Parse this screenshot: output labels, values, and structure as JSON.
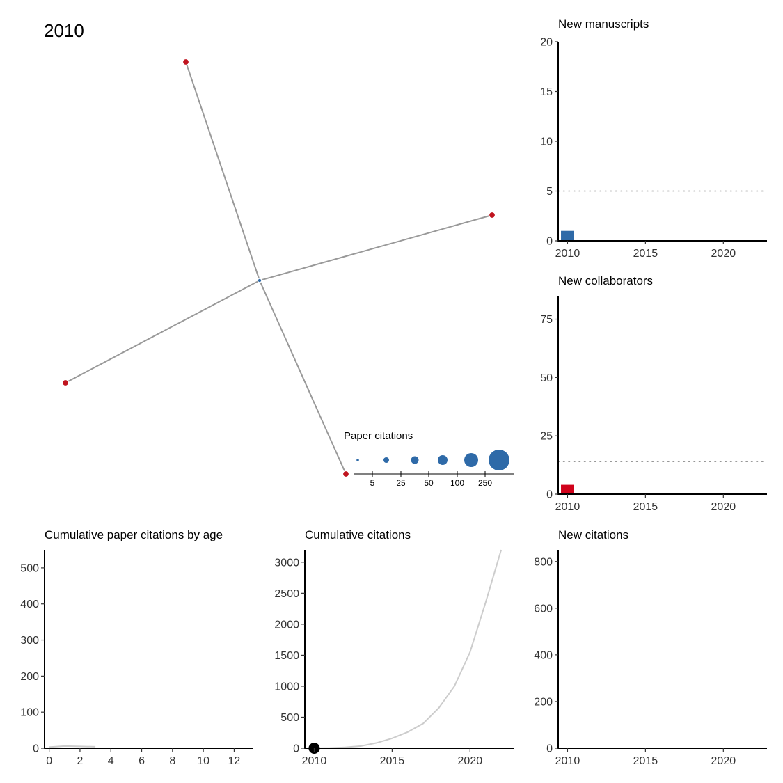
{
  "year_label": "2010",
  "colors": {
    "author_node": "#C0141F",
    "paper_node": "#2E6AA8",
    "edge": "#999999",
    "bar_red": "#D0021B",
    "bar_blue": "#2E6AA8",
    "grey_line": "#CCCCCC",
    "dotted": "#888888"
  },
  "legend": {
    "title": "Paper citations",
    "ticks": [
      "5",
      "25",
      "50",
      "100",
      "250"
    ]
  },
  "chart_data": [
    {
      "id": "network",
      "type": "network",
      "nodes": [
        {
          "id": "paper",
          "kind": "paper"
        },
        {
          "id": "author-1",
          "kind": "author"
        },
        {
          "id": "author-2",
          "kind": "author"
        },
        {
          "id": "author-3",
          "kind": "author"
        },
        {
          "id": "author-4",
          "kind": "author"
        }
      ],
      "edges": [
        [
          "paper",
          "author-1"
        ],
        [
          "paper",
          "author-2"
        ],
        [
          "paper",
          "author-3"
        ],
        [
          "paper",
          "author-4"
        ]
      ]
    },
    {
      "id": "new-manuscripts",
      "type": "bar",
      "title": "New manuscripts",
      "x": [
        2010
      ],
      "values": [
        1
      ],
      "bar_color": "#2E6AA8",
      "xlim": [
        2009.4,
        2022.8
      ],
      "ylim": [
        0,
        20
      ],
      "xticks": [
        2010,
        2015,
        2020
      ],
      "yticks": [
        0,
        5,
        10,
        15,
        20
      ],
      "reference_line": 5
    },
    {
      "id": "new-collaborators",
      "type": "bar",
      "title": "New collaborators",
      "x": [
        2010
      ],
      "values": [
        4
      ],
      "bar_color": "#D0021B",
      "xlim": [
        2009.4,
        2022.8
      ],
      "ylim": [
        0,
        85
      ],
      "xticks": [
        2010,
        2015,
        2020
      ],
      "yticks": [
        0,
        25,
        50,
        75
      ],
      "reference_line": 14
    },
    {
      "id": "cumulative-paper-citations-by-age",
      "type": "line",
      "title": "Cumulative paper citations by age",
      "series": [
        {
          "x": [
            0,
            1,
            2,
            3
          ],
          "y": [
            3,
            6,
            5,
            4
          ]
        }
      ],
      "xlim": [
        -0.3,
        13.2
      ],
      "ylim": [
        0,
        550
      ],
      "xticks": [
        0,
        2,
        4,
        6,
        8,
        10,
        12
      ],
      "yticks": [
        0,
        100,
        200,
        300,
        400,
        500
      ]
    },
    {
      "id": "cumulative-citations",
      "type": "line",
      "title": "Cumulative citations",
      "series": [
        {
          "x": [
            2010,
            2011,
            2012,
            2013,
            2014,
            2015,
            2016,
            2017,
            2018,
            2019,
            2020,
            2021,
            2022
          ],
          "y": [
            0,
            5,
            15,
            35,
            85,
            160,
            260,
            400,
            650,
            1000,
            1550,
            2350,
            3200
          ]
        }
      ],
      "current_point": {
        "x": 2010,
        "y": 0
      },
      "xlim": [
        2009.4,
        2022.8
      ],
      "ylim": [
        0,
        3200
      ],
      "xticks": [
        2010,
        2015,
        2020
      ],
      "yticks": [
        0,
        500,
        1000,
        1500,
        2000,
        2500,
        3000
      ]
    },
    {
      "id": "new-citations",
      "type": "bar",
      "title": "New citations",
      "x": [],
      "values": [],
      "xlim": [
        2009.4,
        2022.8
      ],
      "ylim": [
        0,
        850
      ],
      "xticks": [
        2010,
        2015,
        2020
      ],
      "yticks": [
        0,
        200,
        400,
        600,
        800
      ]
    }
  ]
}
